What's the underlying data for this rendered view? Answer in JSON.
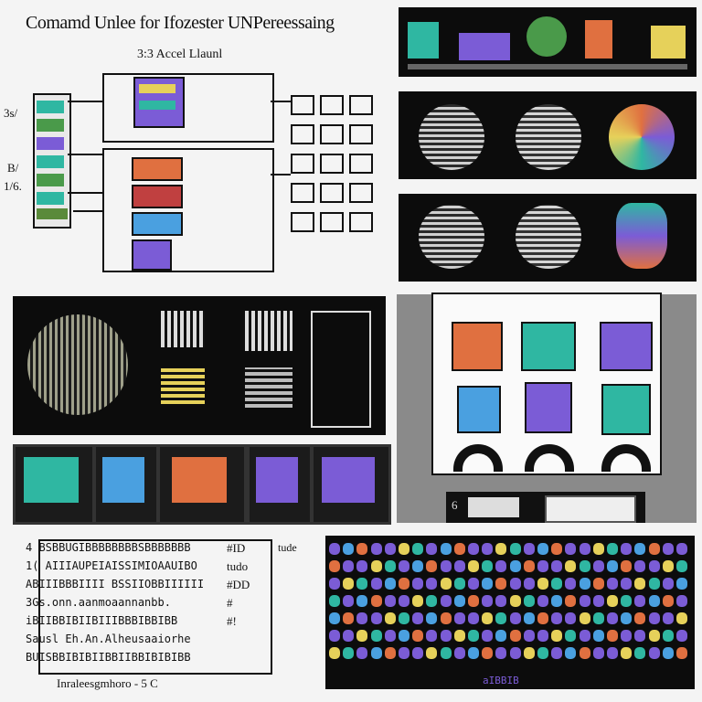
{
  "header": {
    "title": "Comamd Unlee for Ifozester UNPereessaing",
    "subtitle": "3:3 Accel Llaunl"
  },
  "diagram": {
    "side_labels": [
      "3s/",
      "B/",
      "1/6."
    ]
  },
  "text_block": {
    "lines": [
      "4 BSBBUGIBBBBBBBBSBBBBBBB",
      "1( AIIIAUPEIAISSIMIOAAUIBO",
      "ABIIIBBBIIII BSSIIOBBIIIIII",
      "3Gs.onn.aanmoaannanbb.",
      "iBIIBBIBIIBIIIBBBIBBIBB",
      "Sausl Eh.An.Alheusaaiorhe",
      "BUISBBIBIBIIBBIIBBIBIBIBB"
    ],
    "right_labels": [
      "#ID",
      "tudo",
      "#DD",
      "#",
      "#!"
    ],
    "far_right_label": "tude",
    "footer": "Inraleesgmhoro - 5 C"
  },
  "bottom_panel": {
    "caption": "aIBBIB"
  },
  "gray_panel": {
    "number": "6"
  },
  "colors": {
    "panel_bg": "#0c0c0c",
    "accent_purple": "#7b5cd6",
    "accent_teal": "#2fb7a2",
    "accent_orange": "#e07040",
    "accent_yellow": "#e6d15a",
    "accent_blue": "#4aa0e0"
  }
}
